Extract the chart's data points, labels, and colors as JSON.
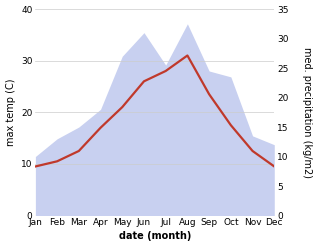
{
  "months": [
    "Jan",
    "Feb",
    "Mar",
    "Apr",
    "May",
    "Jun",
    "Jul",
    "Aug",
    "Sep",
    "Oct",
    "Nov",
    "Dec"
  ],
  "temp": [
    9.5,
    10.5,
    12.5,
    17.0,
    21.0,
    26.0,
    28.0,
    31.0,
    23.5,
    17.5,
    12.5,
    9.5
  ],
  "precip": [
    10.0,
    13.0,
    15.0,
    18.0,
    27.0,
    31.0,
    25.5,
    32.5,
    24.5,
    23.5,
    13.5,
    12.0
  ],
  "temp_color": "#c0392b",
  "precip_fill_color": "#c8d0f0",
  "precip_fill_alpha": 1.0,
  "temp_ylim": [
    0,
    40
  ],
  "precip_ylim": [
    0,
    35
  ],
  "temp_yticks": [
    0,
    10,
    20,
    30,
    40
  ],
  "precip_yticks": [
    0,
    5,
    10,
    15,
    20,
    25,
    30,
    35
  ],
  "xlabel": "date (month)",
  "ylabel_left": "max temp (C)",
  "ylabel_right": "med. precipitation (kg/m2)",
  "bg_color": "#ffffff",
  "label_fontsize": 7,
  "tick_fontsize": 6.5,
  "line_width": 1.6
}
